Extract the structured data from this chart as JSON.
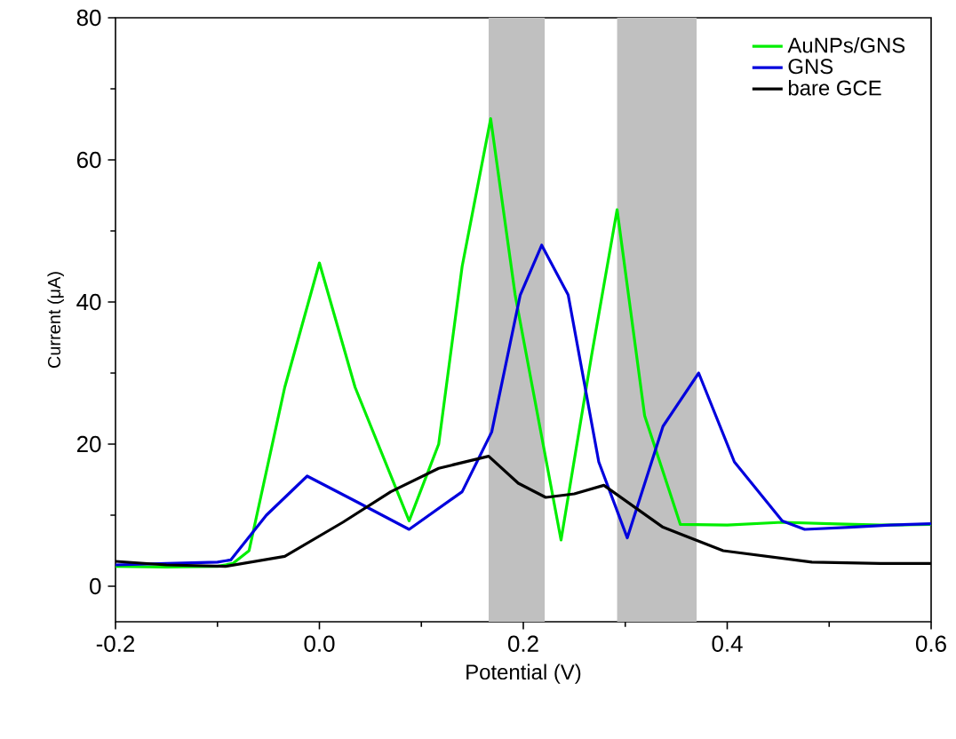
{
  "chart_data": {
    "type": "line",
    "xlabel": "Potential (V)",
    "ylabel": "Current (μA)",
    "xlim": [
      -0.2,
      0.6
    ],
    "ylim": [
      -5,
      80
    ],
    "xticks": [
      {
        "value": -0.2,
        "label": "-0.2"
      },
      {
        "value": 0,
        "label": "0.0"
      },
      {
        "value": 0.2,
        "label": "0.2"
      },
      {
        "value": 0.4,
        "label": "0.4"
      },
      {
        "value": 0.6,
        "label": "0.6"
      }
    ],
    "yticks": [
      0,
      20,
      40,
      60,
      80
    ],
    "legend": "top right",
    "marker": "none",
    "line_style": "solid",
    "bands": [
      {
        "axis": "x",
        "from": 0.166,
        "to": 0.221,
        "color": "#c0c0c0"
      },
      {
        "axis": "x",
        "from": 0.292,
        "to": 0.37,
        "color": "#c0c0c0"
      }
    ],
    "series": [
      {
        "name": "AuNPs/GNS",
        "color": "#00ee00",
        "x": [
          -0.2,
          -0.15,
          -0.1,
          -0.085,
          -0.069,
          -0.034,
          0.0,
          0.035,
          0.088,
          0.117,
          0.14,
          0.168,
          0.192,
          0.237,
          0.267,
          0.292,
          0.319,
          0.354,
          0.4,
          0.454,
          0.5,
          0.55,
          0.6
        ],
        "values": [
          2.8,
          2.7,
          2.8,
          3.2,
          5,
          28,
          45.5,
          28,
          9.2,
          20,
          45,
          65.8,
          41,
          6.5,
          32.5,
          53,
          24,
          8.7,
          8.6,
          9,
          8.8,
          8.6,
          8.7
        ]
      },
      {
        "name": "GNS",
        "color": "#0000dd",
        "x": [
          -0.2,
          -0.15,
          -0.1,
          -0.087,
          -0.052,
          -0.012,
          0.035,
          0.088,
          0.14,
          0.169,
          0.197,
          0.218,
          0.244,
          0.274,
          0.302,
          0.337,
          0.372,
          0.407,
          0.454,
          0.476,
          0.52,
          0.56,
          0.6
        ],
        "values": [
          3,
          3.2,
          3.4,
          3.7,
          10,
          15.5,
          12,
          8,
          13.3,
          21.7,
          41,
          48,
          41,
          17.5,
          6.8,
          22.5,
          30,
          17.5,
          9.2,
          8,
          8.3,
          8.6,
          8.8
        ]
      },
      {
        "name": "bare GCE",
        "color": "#000000",
        "x": [
          -0.2,
          -0.15,
          -0.092,
          -0.034,
          0.023,
          0.07,
          0.117,
          0.166,
          0.195,
          0.222,
          0.25,
          0.279,
          0.337,
          0.396,
          0.483,
          0.55,
          0.6
        ],
        "values": [
          3.5,
          3,
          2.8,
          4.2,
          9,
          13.3,
          16.6,
          18.3,
          14.5,
          12.5,
          13,
          14.2,
          8.3,
          5,
          3.4,
          3.2,
          3.2
        ]
      }
    ]
  }
}
